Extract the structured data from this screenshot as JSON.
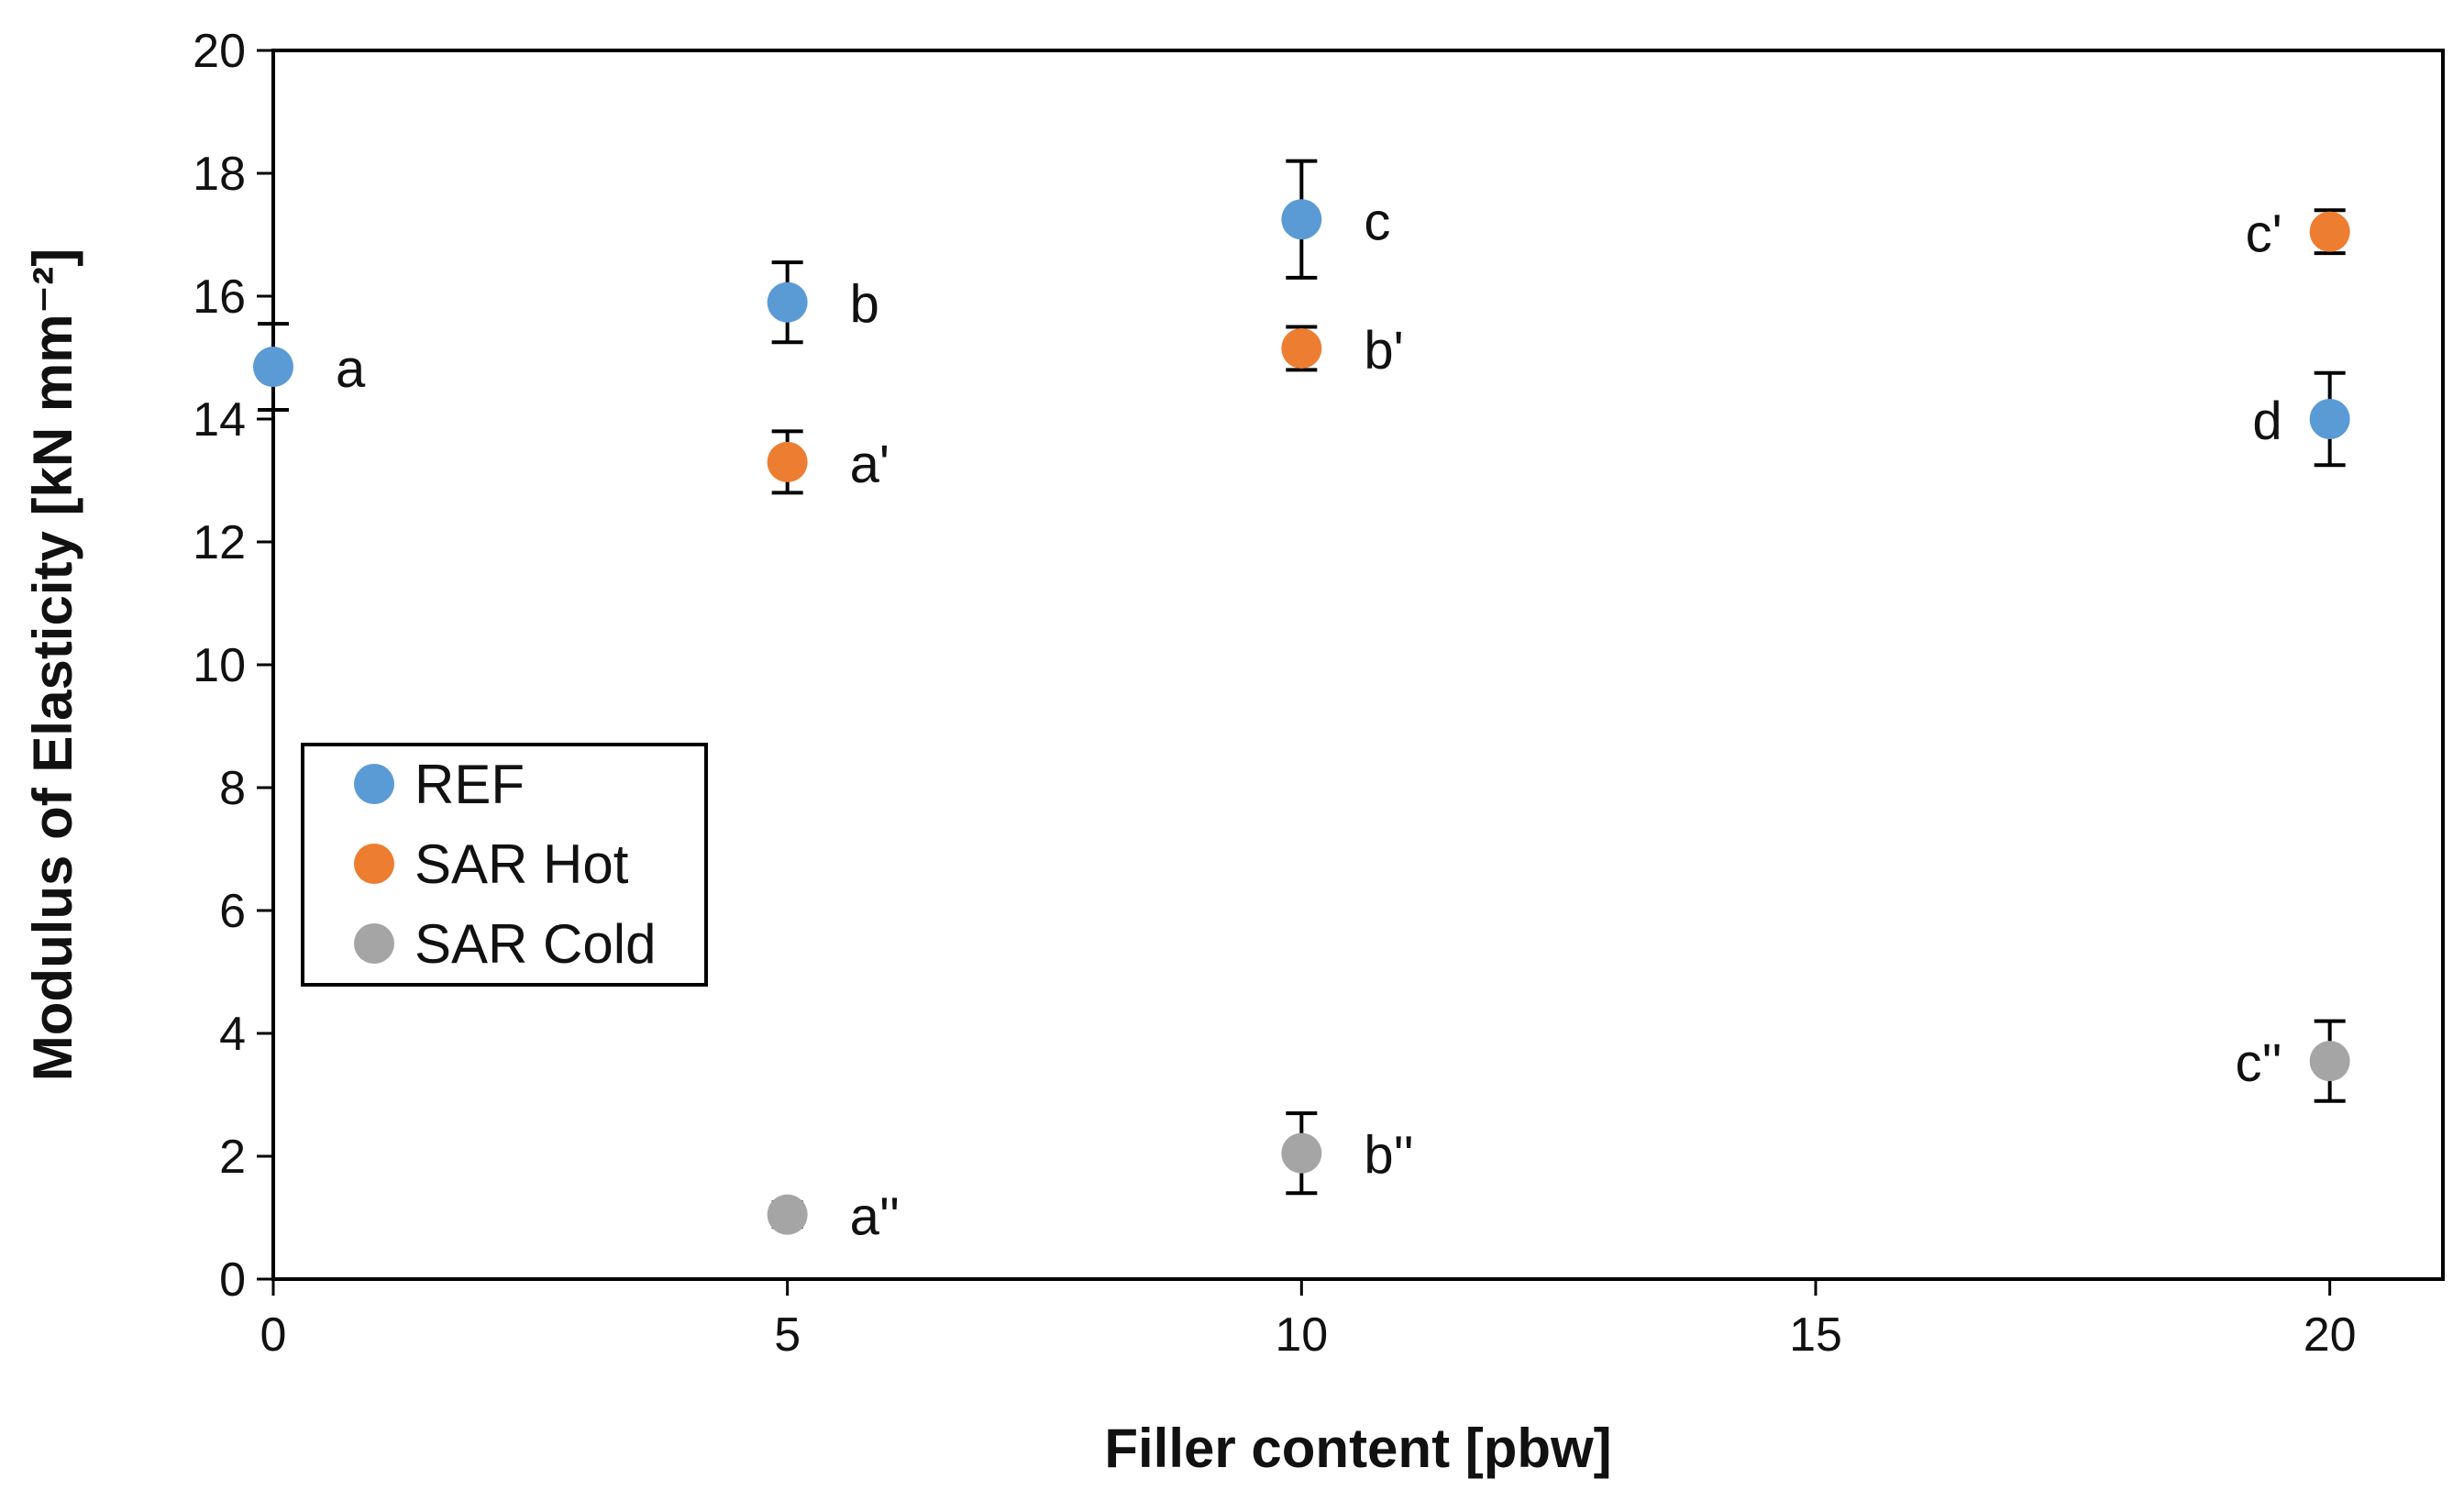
{
  "chart_data": {
    "type": "scatter",
    "title": "",
    "xlabel": "Filler content [pbw]",
    "ylabel": "Modulus of Elasticity [kN mm⁻²]",
    "xlim": [
      0,
      21.1
    ],
    "ylim": [
      0,
      20
    ],
    "xticks": [
      "0",
      "5",
      "10",
      "15",
      "20"
    ],
    "yticks": [
      "0",
      "2",
      "4",
      "6",
      "8",
      "10",
      "12",
      "14",
      "16",
      "18",
      "20"
    ],
    "grid": false,
    "legend_position": "left-middle",
    "series": [
      {
        "name": "REF",
        "color": "#5b9bd5",
        "points": [
          {
            "x": 0,
            "y": 14.85,
            "err": 0.7,
            "label": "a"
          },
          {
            "x": 5,
            "y": 15.9,
            "err": 0.65,
            "label": "b"
          },
          {
            "x": 10,
            "y": 17.25,
            "err": 0.95,
            "label": "c"
          },
          {
            "x": 20,
            "y": 14.0,
            "err": 0.75,
            "label": "d"
          }
        ]
      },
      {
        "name": "SAR Hot",
        "color": "#ed7d31",
        "points": [
          {
            "x": 5,
            "y": 13.3,
            "err": 0.5,
            "label": "a'"
          },
          {
            "x": 10,
            "y": 15.15,
            "err": 0.35,
            "label": "b'"
          },
          {
            "x": 20,
            "y": 17.05,
            "err": 0.35,
            "label": "c'"
          }
        ]
      },
      {
        "name": "SAR Cold",
        "color": "#a5a5a5",
        "points": [
          {
            "x": 5,
            "y": 1.05,
            "err": 0.2,
            "label": "a''"
          },
          {
            "x": 10,
            "y": 2.05,
            "err": 0.65,
            "label": "b''"
          },
          {
            "x": 20,
            "y": 3.55,
            "err": 0.65,
            "label": "c''"
          }
        ]
      }
    ]
  }
}
